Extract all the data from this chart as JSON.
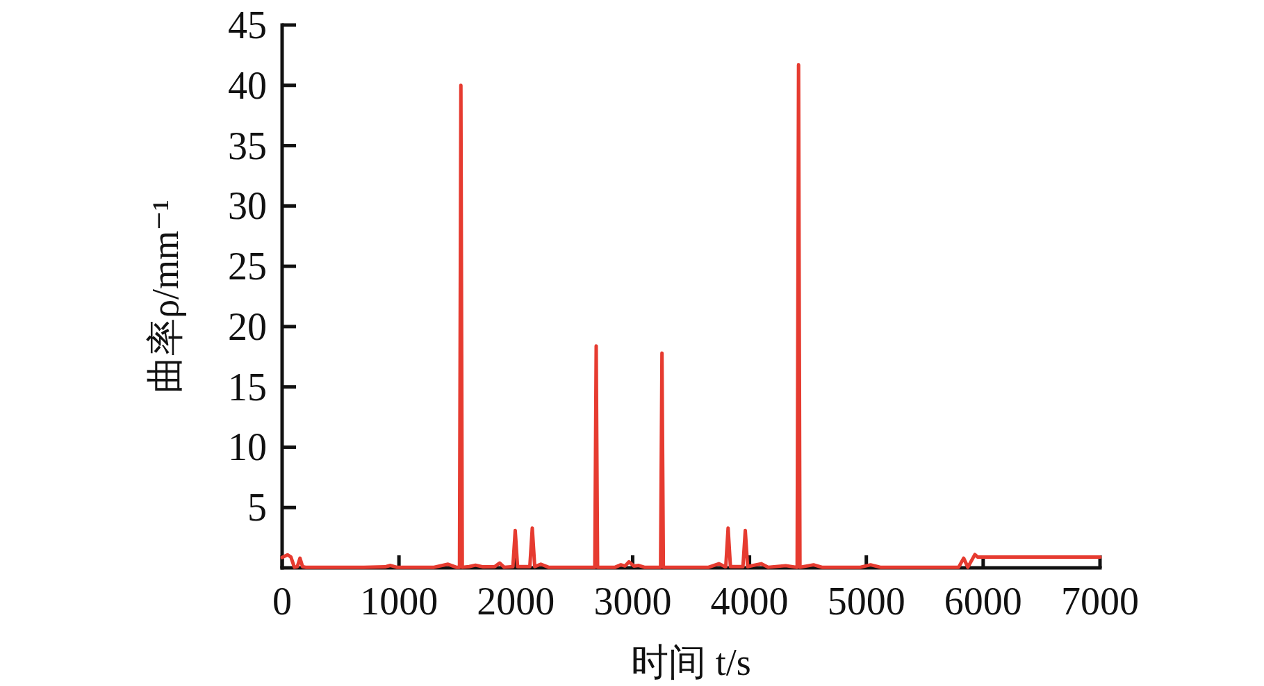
{
  "chart_data": {
    "type": "line",
    "xlabel": "时间 t/s",
    "ylabel": "曲率ρ/mm⁻¹",
    "color": "#e63b30",
    "line_style": "solid",
    "x": [
      0,
      47,
      75,
      105,
      130,
      153,
      175,
      200,
      700,
      880,
      927,
      980,
      1300,
      1420,
      1490,
      1518,
      1530,
      1542,
      1600,
      1655,
      1720,
      1820,
      1862,
      1900,
      1975,
      1995,
      2015,
      2120,
      2141,
      2162,
      2214,
      2280,
      2600,
      2676,
      2688,
      2700,
      2850,
      2899,
      2935,
      2969,
      3010,
      3052,
      3100,
      3239,
      3251,
      3263,
      3650,
      3738,
      3790,
      3797,
      3817,
      3837,
      3944,
      3964,
      3984,
      4100,
      4160,
      4310,
      4400,
      4408,
      4420,
      4432,
      4548,
      4620,
      4950,
      5036,
      5120,
      5790,
      5833,
      5869,
      5929,
      5952,
      7000
    ],
    "values": [
      0.86,
      1.08,
      0.9,
      0.05,
      0.1,
      0.8,
      0.1,
      0.05,
      0.05,
      0.08,
      0.2,
      0.05,
      0.05,
      0.3,
      0.05,
      0.05,
      40.0,
      0.05,
      0.1,
      0.22,
      0.08,
      0.1,
      0.4,
      0.05,
      0.1,
      3.1,
      0.1,
      0.1,
      3.3,
      0.1,
      0.3,
      0.05,
      0.05,
      0.05,
      18.4,
      0.05,
      0.05,
      0.25,
      0.15,
      0.5,
      0.15,
      0.2,
      0.05,
      0.05,
      17.8,
      0.05,
      0.05,
      0.34,
      0.1,
      0.1,
      3.3,
      0.1,
      0.1,
      3.1,
      0.1,
      0.34,
      0.05,
      0.18,
      0.05,
      0.05,
      41.7,
      0.05,
      0.25,
      0.05,
      0.05,
      0.25,
      0.05,
      0.05,
      0.8,
      0.05,
      1.1,
      0.9,
      0.9
    ],
    "xlim": [
      0,
      7000
    ],
    "xticks": [
      0,
      1000,
      2000,
      3000,
      4000,
      5000,
      6000,
      7000
    ],
    "ylim": [
      0,
      45
    ],
    "yticks": [
      5,
      10,
      15,
      20,
      25,
      30,
      35,
      40,
      45
    ]
  }
}
